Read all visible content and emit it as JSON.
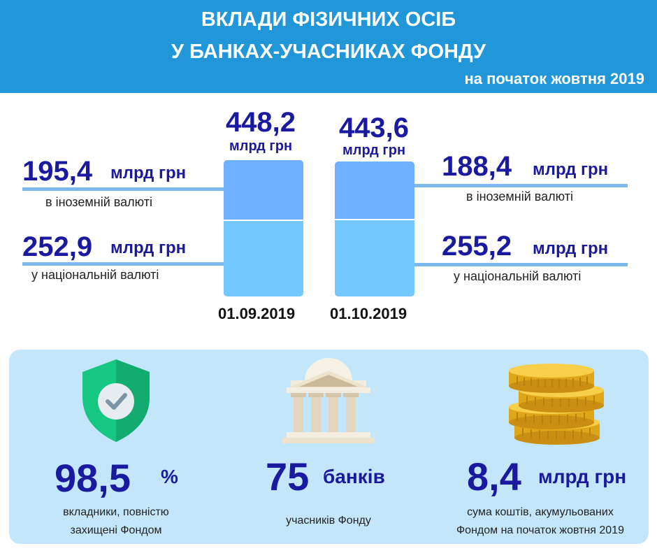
{
  "header": {
    "title_line1": "ВКЛАДИ ФІЗИЧНИХ ОСІБ",
    "title_line2": "У БАНКАХ-УЧАСНИКАХ ФОНДУ",
    "subtitle": "на початок жовтня 2019"
  },
  "colors": {
    "header_bg": "#2196d9",
    "accent_text": "#1a1aa0",
    "foreign_segment": "#6fb0ff",
    "national_segment": "#72c8ff",
    "panel_bg": "#c3e6fb"
  },
  "chart_data": {
    "type": "bar",
    "stacked": true,
    "categories": [
      "01.09.2019",
      "01.10.2019"
    ],
    "totals": [
      "448,2",
      "443,6"
    ],
    "total_unit": "млрд грн",
    "series": [
      {
        "values": [
          252.9,
          255.2
        ]
      },
      {
        "values": [
          195.4,
          188.4
        ]
      }
    ]
  },
  "left": {
    "foreign_value": "195,4",
    "foreign_unit": "млрд грн",
    "foreign_label": "в іноземній валюті",
    "national_value": "252,9",
    "national_unit": "млрд грн",
    "national_label": "у національній валюті"
  },
  "right": {
    "foreign_value": "188,4",
    "foreign_unit": "млрд грн",
    "foreign_label": "в іноземній валюті",
    "national_value": "255,2",
    "national_unit": "млрд грн",
    "national_label": "у національній валюті"
  },
  "stats": [
    {
      "icon": "shield-check-icon",
      "value": "98,5",
      "unit": "%",
      "label_line1": "вкладники, повністю",
      "label_line2": "захищені Фондом"
    },
    {
      "icon": "bank-building-icon",
      "value": "75",
      "unit": "банків",
      "label_line1": "учасників Фонду"
    },
    {
      "icon": "coins-stack-icon",
      "value": "8,4",
      "unit": "млрд грн",
      "label_line1": "сума коштів, акумульованих",
      "label_line2": "Фондом на початок жовтня 2019"
    }
  ]
}
